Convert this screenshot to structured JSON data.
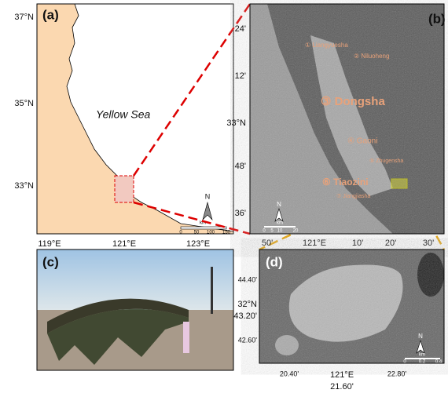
{
  "panel_a": {
    "label": "(a)",
    "lat_ticks": [
      "37°N",
      "35°N",
      "33°N"
    ],
    "lon_ticks": [
      "119°E",
      "121°E",
      "123°E"
    ],
    "sea_label": "Yellow Sea",
    "north": "N",
    "scale_unit": "km",
    "scale_ticks": [
      "0",
      "50",
      "100",
      "150"
    ]
  },
  "panel_b": {
    "label": "(b)",
    "lat_ticks": [
      "24'",
      "12'",
      "33°N",
      "48'",
      "36'"
    ],
    "lon_ticks": [
      "50'",
      "121°E",
      "10'",
      "20'",
      "30'"
    ],
    "sites": [
      "① Liangyuesha",
      "② Niluoheng",
      "③ Dongsha",
      "④ Gaoni",
      "⑤ Zhugensha",
      "⑥ Tiaozini",
      "⑦ Jiangjiasha"
    ],
    "north": "N",
    "scale_unit": "km",
    "scale_ticks": [
      "0",
      "5",
      "10",
      "20"
    ]
  },
  "panel_c": {
    "label": "(c)"
  },
  "panel_d": {
    "label": "(d)",
    "lat_ticks": [
      "44.40'",
      "32°N",
      "43.20'",
      "42.60'"
    ],
    "lon_ticks": [
      "20.40'",
      "121°E",
      "21.60'",
      "22.80'"
    ],
    "north": "N",
    "scale_unit": "km",
    "scale_ticks": [
      "0",
      "0.2",
      "0.4"
    ]
  }
}
